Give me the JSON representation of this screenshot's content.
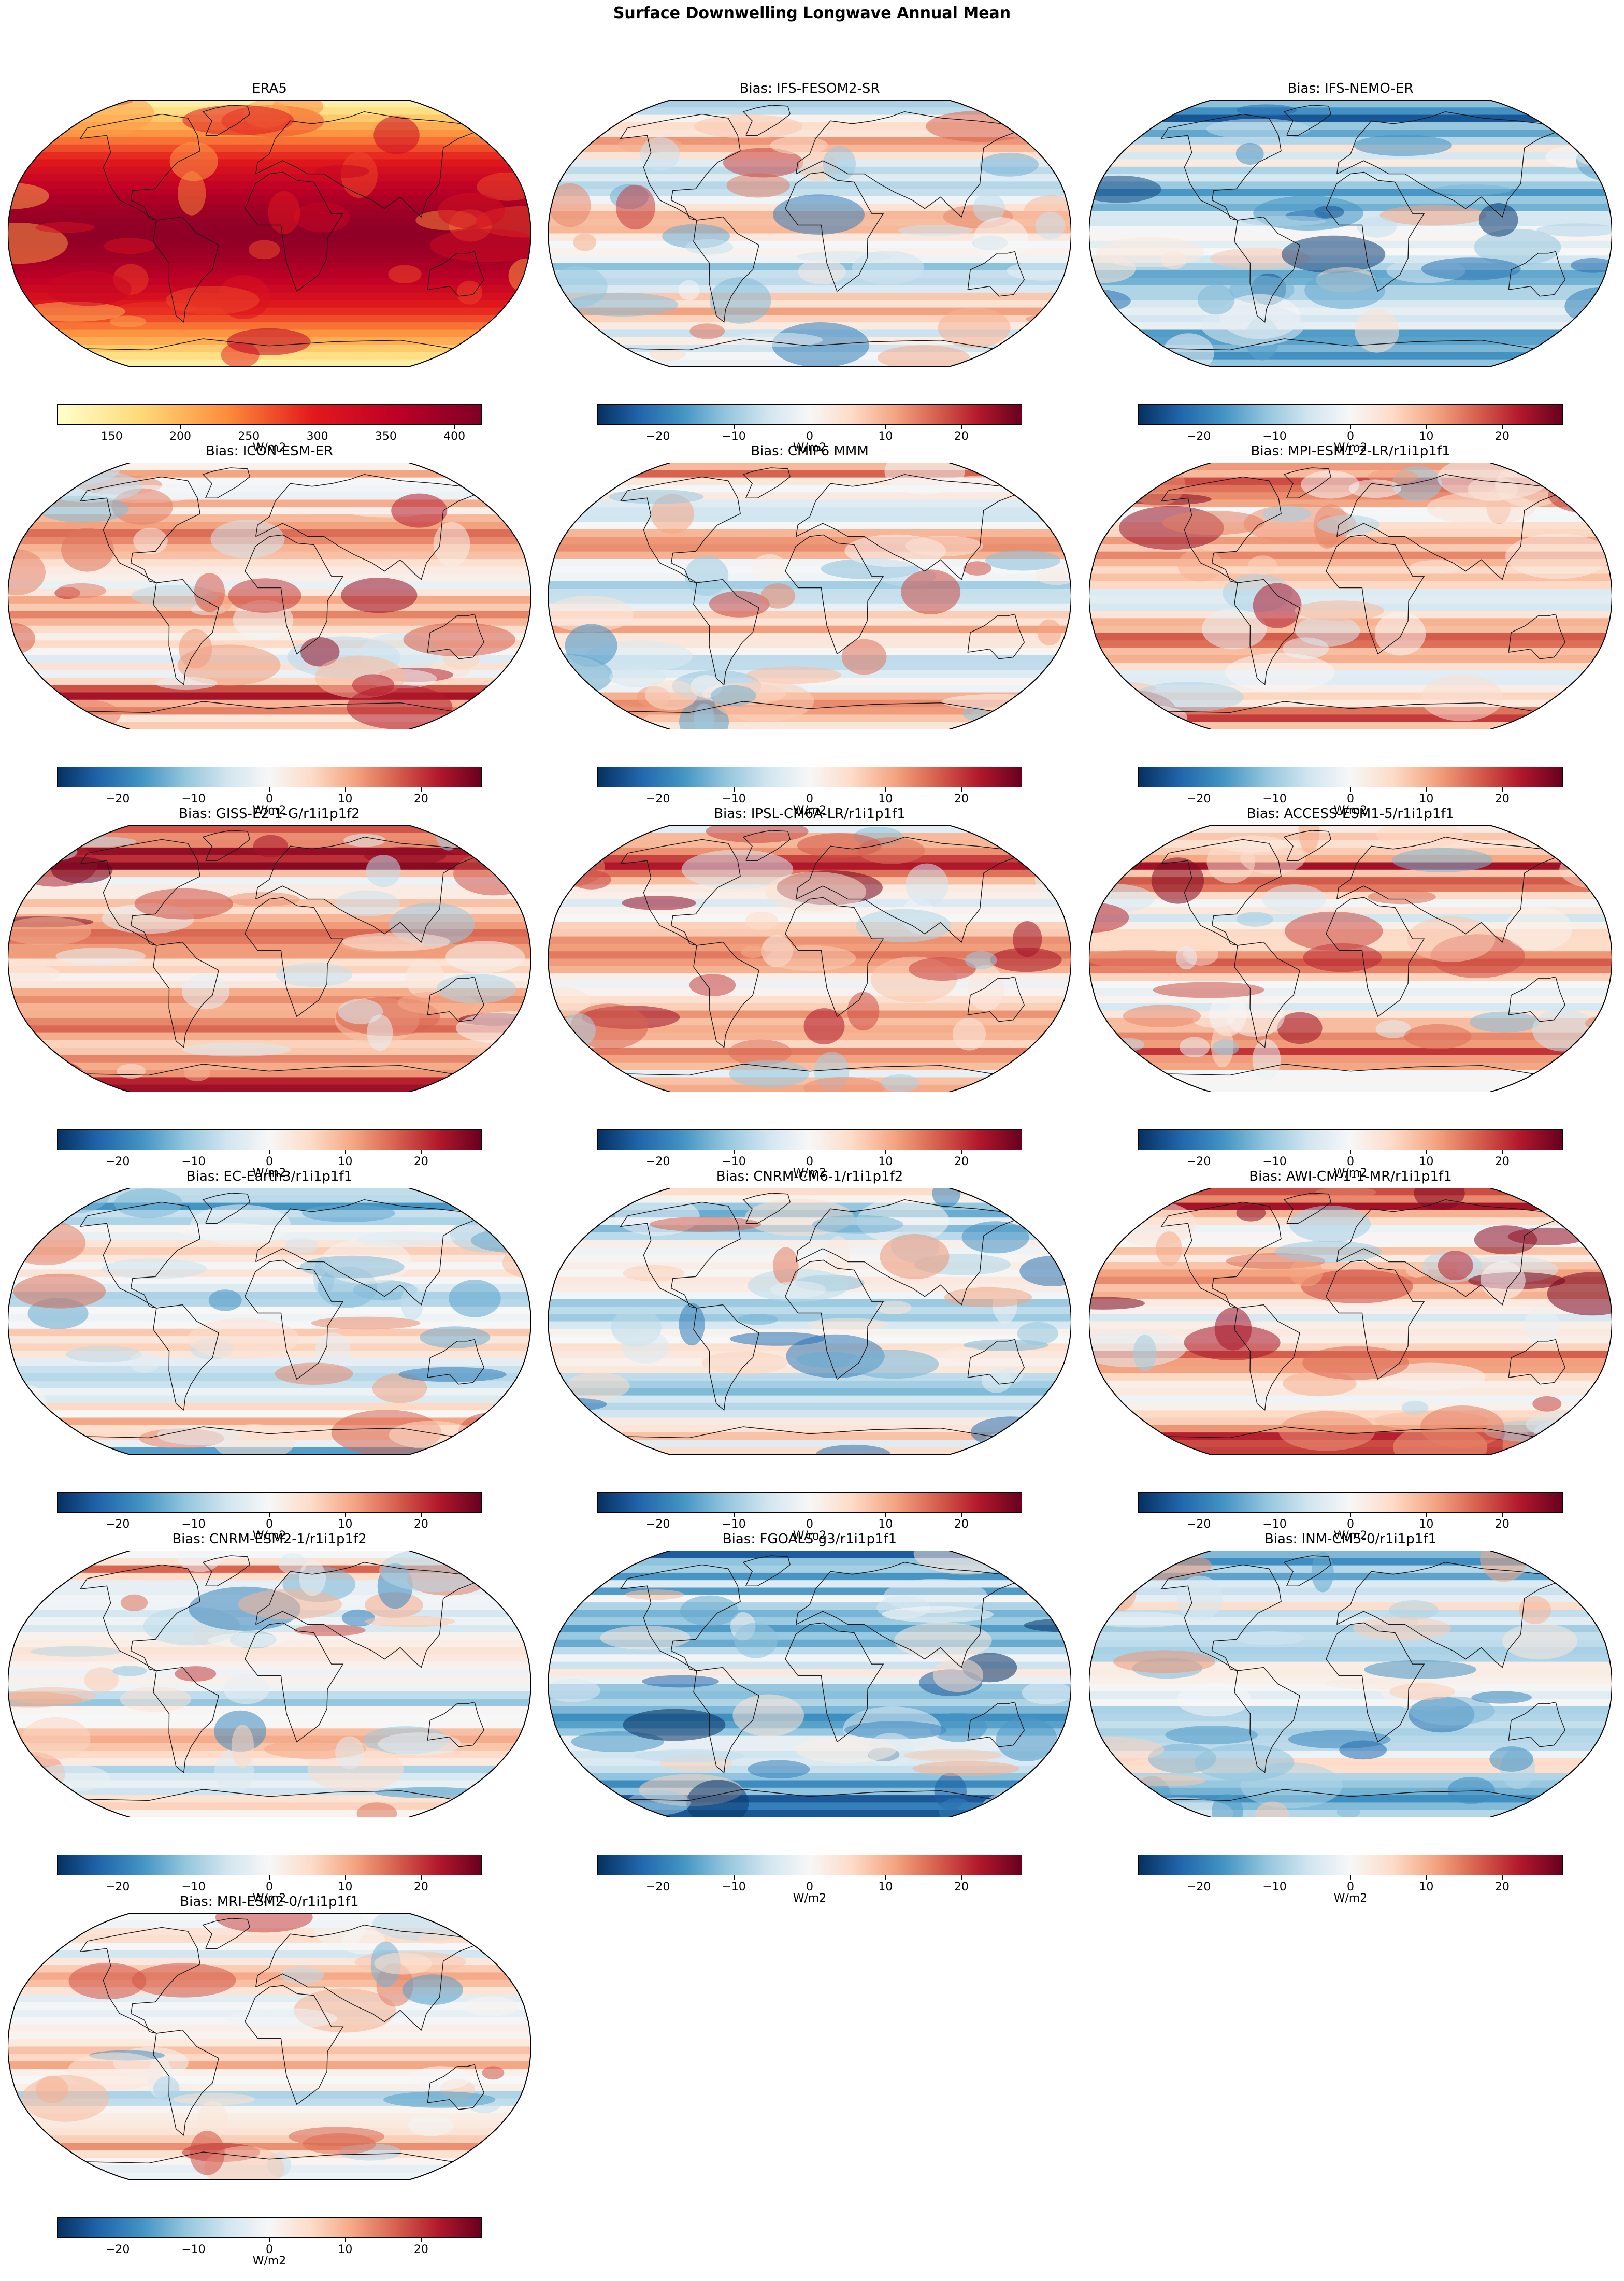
{
  "figure_title": "Surface Downwelling Longwave Annual Mean",
  "colors": {
    "yl_or_rd": [
      "#ffffcc",
      "#fed976",
      "#fd8d3c",
      "#e31a1c",
      "#bd0026",
      "#800026"
    ],
    "rd_bu_r": [
      "#053061",
      "#2166ac",
      "#4393c3",
      "#92c5de",
      "#d1e5f0",
      "#f7f7f7",
      "#fddbc7",
      "#f4a582",
      "#d6604d",
      "#b2182b",
      "#67001f"
    ],
    "coastline": "#1a1a1a",
    "ocean_bg": "#ffffff"
  },
  "colorbars": {
    "absolute": {
      "label": "W/m2",
      "range": [
        110,
        420
      ],
      "ticks": [
        "150",
        "200",
        "250",
        "300",
        "350",
        "400"
      ],
      "tick_values": [
        150,
        200,
        250,
        300,
        350,
        400
      ],
      "colormap": "yl_or_rd"
    },
    "bias": {
      "label": "W/m2",
      "range": [
        -28,
        28
      ],
      "ticks": [
        "−20",
        "−10",
        "0",
        "10",
        "20"
      ],
      "tick_values": [
        -20,
        -10,
        0,
        10,
        20
      ],
      "colormap": "rd_bu_r"
    }
  },
  "panels": [
    {
      "title": "ERA5",
      "kind": "absolute",
      "tone": 0.75
    },
    {
      "title": "Bias: IFS-FESOM2-SR",
      "kind": "bias",
      "tone": 0.0
    },
    {
      "title": "Bias: IFS-NEMO-ER",
      "kind": "bias",
      "tone": -0.35
    },
    {
      "title": "Bias: ICON-ESM-ER",
      "kind": "bias",
      "tone": 0.25
    },
    {
      "title": "Bias: CMIP6 MMM",
      "kind": "bias",
      "tone": 0.1
    },
    {
      "title": "Bias: MPI-ESM1-2-LR/r1i1p1f1",
      "kind": "bias",
      "tone": 0.3
    },
    {
      "title": "Bias: GISS-E2-1-G/r1i1p1f2",
      "kind": "bias",
      "tone": 0.4
    },
    {
      "title": "Bias: IPSL-CM6A-LR/r1i1p1f1",
      "kind": "bias",
      "tone": 0.35
    },
    {
      "title": "Bias: ACCESS-ESM1-5/r1i1p1f1",
      "kind": "bias",
      "tone": 0.3
    },
    {
      "title": "Bias: EC-Earth3/r1i1p1f1",
      "kind": "bias",
      "tone": -0.05
    },
    {
      "title": "Bias: CNRM-CM6-1/r1i1p1f2",
      "kind": "bias",
      "tone": -0.1
    },
    {
      "title": "Bias: AWI-CM-1-1-MR/r1i1p1f1",
      "kind": "bias",
      "tone": 0.35
    },
    {
      "title": "Bias: CNRM-ESM2-1/r1i1p1f2",
      "kind": "bias",
      "tone": 0.0
    },
    {
      "title": "Bias: FGOALS-g3/r1i1p1f1",
      "kind": "bias",
      "tone": -0.4
    },
    {
      "title": "Bias: INM-CM5-0/r1i1p1f1",
      "kind": "bias",
      "tone": -0.25
    },
    {
      "title": "Bias: MRI-ESM2-0/r1i1p1f1",
      "kind": "bias",
      "tone": 0.1
    }
  ]
}
